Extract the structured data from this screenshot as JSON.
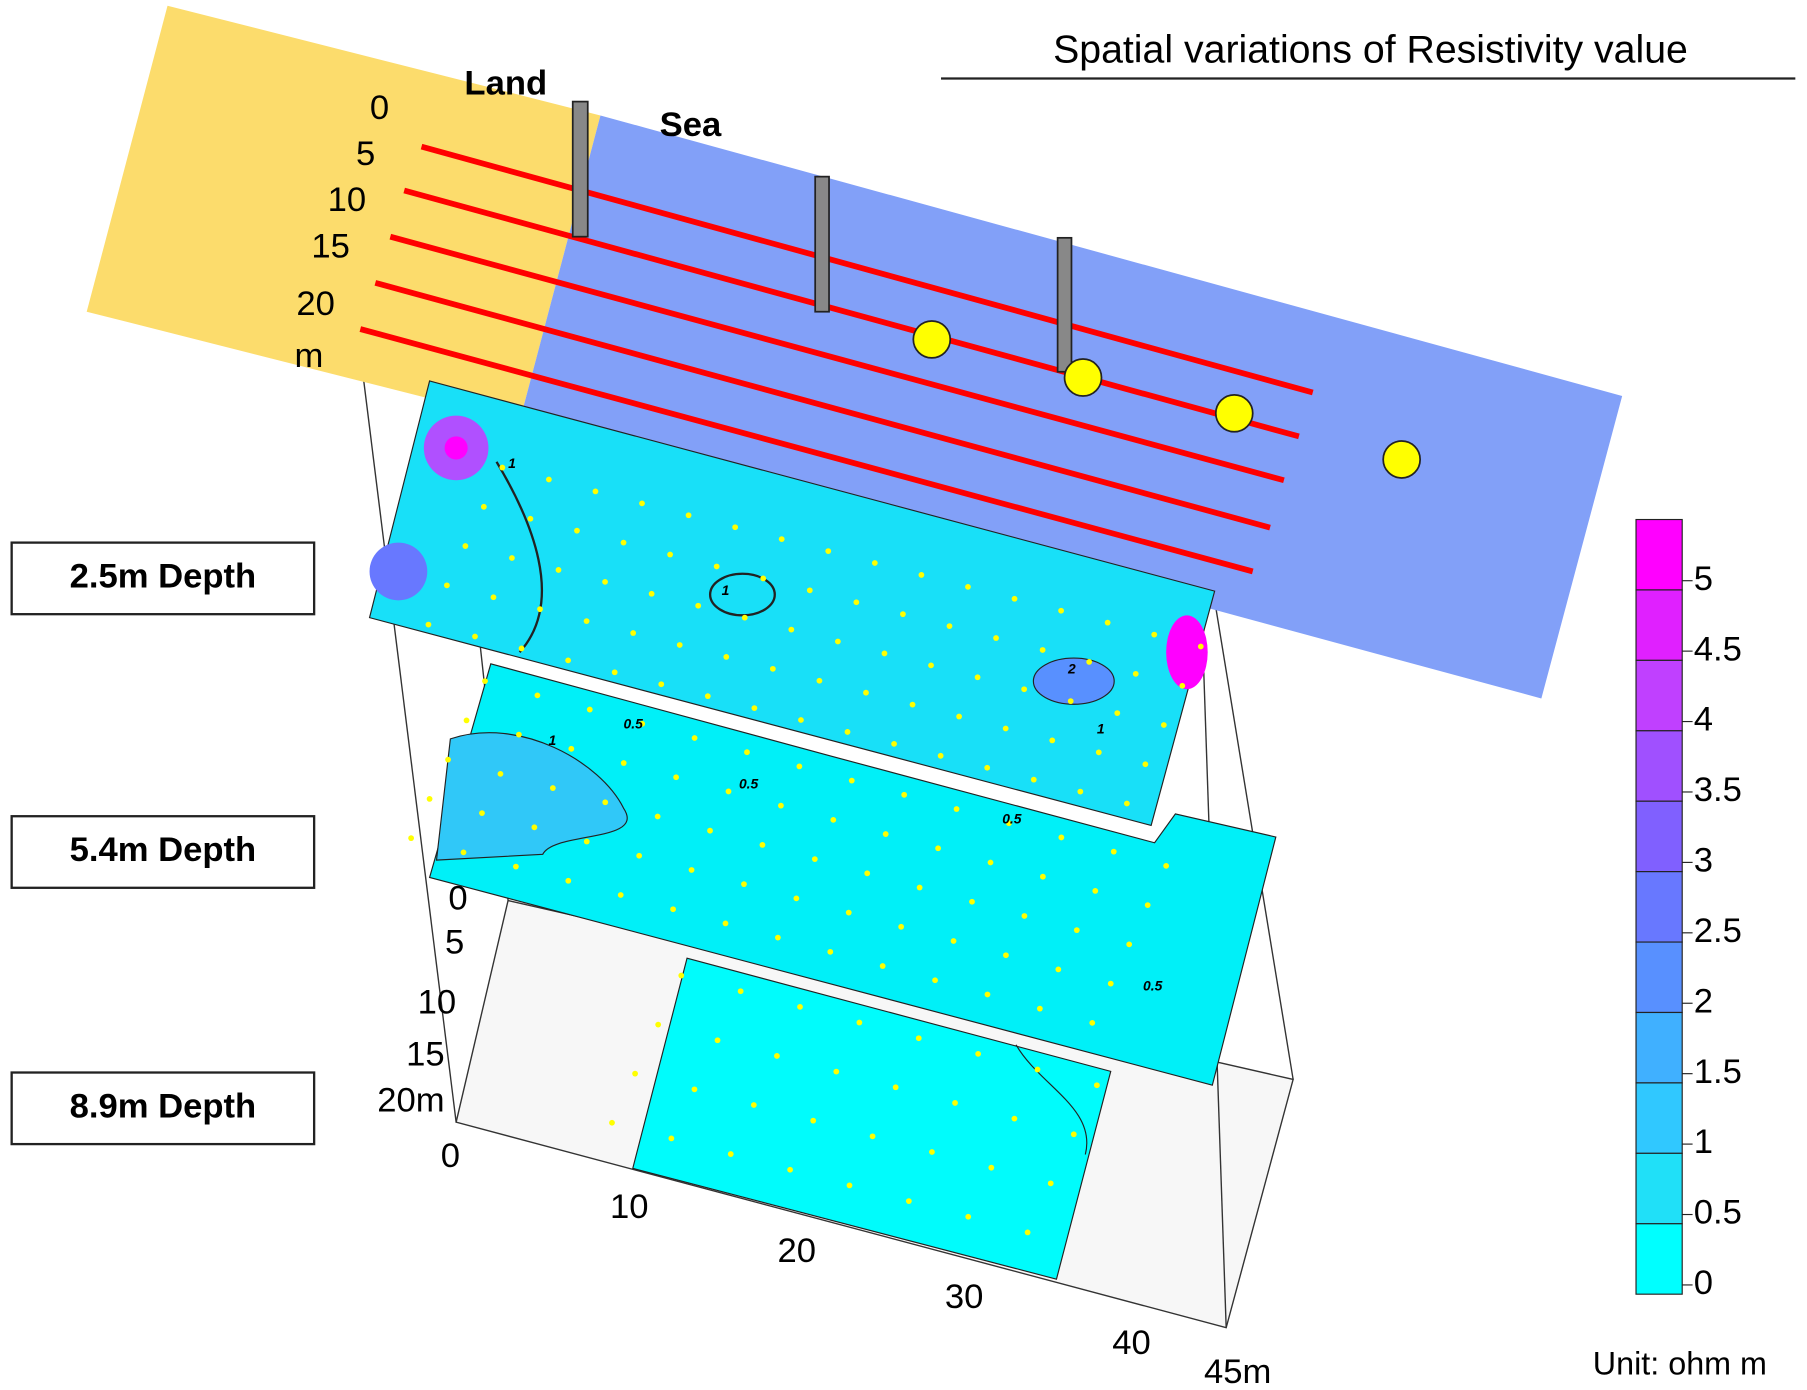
{
  "title": "Spatial variations of Resistivity value",
  "map": {
    "land": "Land",
    "sea": "Sea",
    "distance_labels": [
      "0",
      "5",
      "10",
      "15",
      "20",
      "m"
    ]
  },
  "slices": [
    {
      "label": "2.5m Depth",
      "contour_labels": [
        "1",
        "1",
        "2",
        "1"
      ]
    },
    {
      "label": "5.4m Depth",
      "contour_labels": [
        "0.5",
        "1",
        "0.5",
        "0.5",
        "0.5"
      ]
    },
    {
      "label": "8.9m Depth",
      "contour_labels": []
    }
  ],
  "base_axes": {
    "y_labels": [
      "0",
      "5",
      "10",
      "15",
      "20m"
    ],
    "x_labels": [
      "0",
      "10",
      "20",
      "30",
      "40",
      "45m"
    ]
  },
  "colorbar": {
    "ticks": [
      "5",
      "4.5",
      "4",
      "3.5",
      "3",
      "2.5",
      "2",
      "1.5",
      "1",
      "0.5",
      "0"
    ],
    "unit": "Unit: ohm m"
  }
}
